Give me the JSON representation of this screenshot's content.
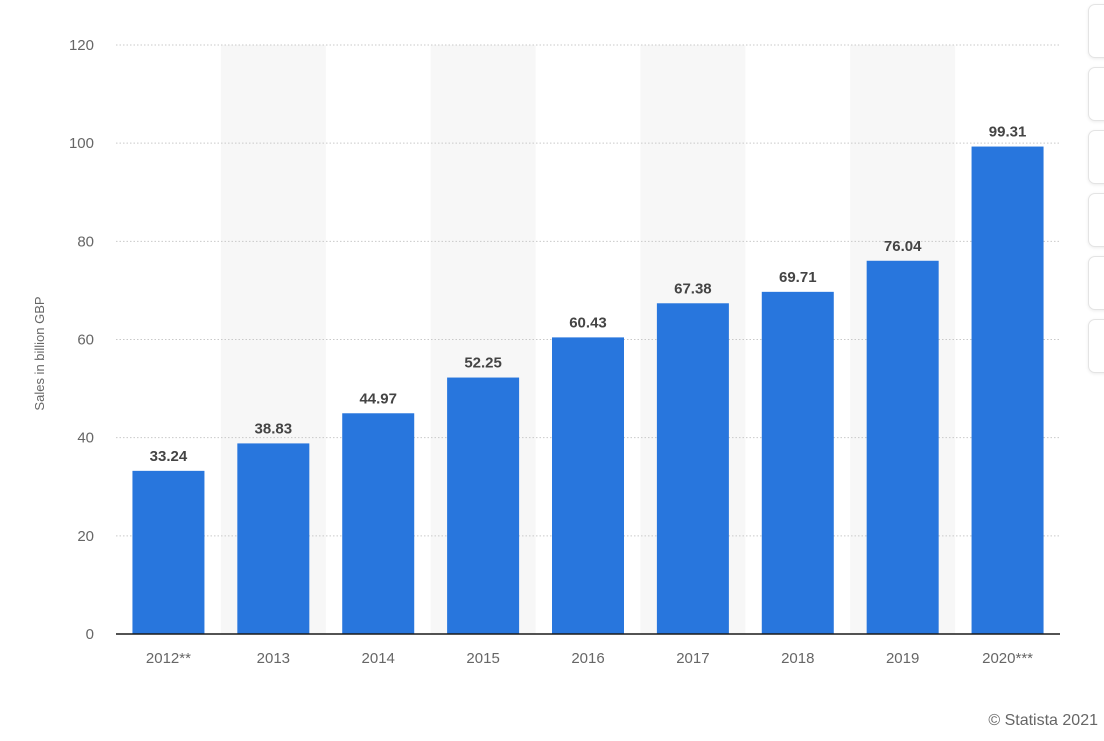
{
  "chart_data": {
    "type": "bar",
    "categories": [
      "2012**",
      "2013",
      "2014",
      "2015",
      "2016",
      "2017",
      "2018",
      "2019",
      "2020***"
    ],
    "values": [
      33.24,
      38.83,
      44.97,
      52.25,
      60.43,
      67.38,
      69.71,
      76.04,
      99.31
    ],
    "value_labels": [
      "33.24",
      "38.83",
      "44.97",
      "52.25",
      "60.43",
      "67.38",
      "69.71",
      "76.04",
      "99.31"
    ],
    "xlabel": "",
    "ylabel": "Sales in billion GBP",
    "ylim": [
      0,
      120
    ],
    "yticks": [
      0,
      20,
      40,
      60,
      80,
      100,
      120
    ],
    "grid": true,
    "legend": "none",
    "colors": {
      "bar": "#2876dd",
      "band": "#f7f7f7",
      "grid": "#c9c9c9",
      "axis": "#1a1a1a"
    }
  },
  "footer": {
    "copyright": "© Statista 2021"
  },
  "toolbar": {
    "buttons": [
      "toolbar-button-1",
      "toolbar-button-2",
      "toolbar-button-3",
      "toolbar-button-4",
      "toolbar-button-5",
      "toolbar-button-6"
    ]
  }
}
